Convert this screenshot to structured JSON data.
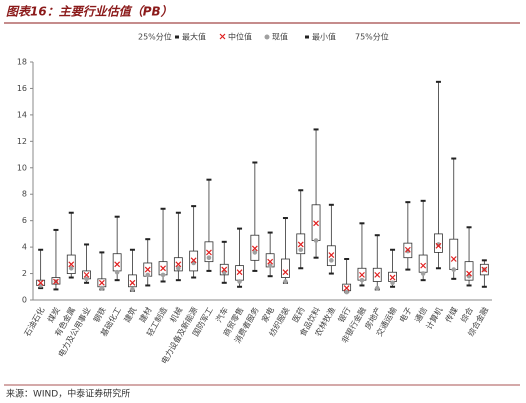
{
  "title": "图表16：主要行业估值（PB）",
  "source": "来源：WIND，中泰证券研究所",
  "chart_data": {
    "type": "box",
    "categories": [
      "石油石化",
      "煤炭",
      "有色金属",
      "电力及公用事业",
      "钢铁",
      "基础化工",
      "建筑",
      "建材",
      "轻工制造",
      "机械",
      "电力设备及新能源",
      "国防军工",
      "汽车",
      "商贸零售",
      "消费者服务",
      "家电",
      "纺织服装",
      "医药",
      "食品饮料",
      "农林牧渔",
      "银行",
      "非银行金融",
      "房地产",
      "交通运输",
      "电子",
      "通信",
      "计算机",
      "传媒",
      "综合",
      "综合金融"
    ],
    "series": [
      {
        "name": "25%分位",
        "color": "#ffffff",
        "values": [
          1.1,
          1.2,
          2.0,
          1.6,
          1.0,
          2.2,
          1.0,
          1.8,
          1.9,
          2.2,
          2.2,
          2.9,
          1.9,
          1.5,
          3.0,
          2.5,
          1.7,
          3.5,
          4.5,
          2.6,
          0.7,
          1.5,
          1.4,
          1.4,
          3.2,
          2.1,
          3.6,
          2.3,
          1.5,
          1.9
        ]
      },
      {
        "name": "最大值",
        "color": "#222222",
        "values": [
          3.8,
          5.3,
          6.6,
          4.2,
          3.6,
          6.3,
          3.8,
          4.6,
          6.9,
          6.6,
          7.1,
          9.1,
          4.4,
          5.4,
          10.4,
          5.1,
          6.2,
          8.3,
          12.9,
          7.2,
          3.1,
          5.8,
          4.9,
          3.8,
          7.4,
          7.5,
          16.5,
          10.7,
          5.5,
          3.0
        ]
      },
      {
        "name": "中位值",
        "color": "#e02020",
        "values": [
          1.3,
          1.4,
          2.7,
          1.9,
          1.3,
          2.7,
          1.3,
          2.3,
          2.4,
          2.7,
          3.0,
          3.6,
          2.3,
          2.1,
          3.9,
          2.9,
          2.1,
          4.2,
          5.8,
          3.4,
          0.9,
          1.9,
          1.9,
          1.7,
          3.8,
          2.6,
          4.1,
          3.1,
          2.0,
          2.3
        ]
      },
      {
        "name": "现值",
        "color": "#a0a0a0",
        "values": [
          1.1,
          1.4,
          2.4,
          1.6,
          0.9,
          2.1,
          0.8,
          1.9,
          1.9,
          2.4,
          2.8,
          3.2,
          2.1,
          1.4,
          3.6,
          2.6,
          1.4,
          3.8,
          4.5,
          3.0,
          0.6,
          1.5,
          0.9,
          1.3,
          3.7,
          2.0,
          4.2,
          2.3,
          1.8,
          2.3
        ]
      },
      {
        "name": "最小值",
        "color": "#222222",
        "values": [
          0.9,
          0.8,
          1.7,
          1.3,
          0.8,
          1.5,
          0.7,
          1.1,
          1.4,
          1.5,
          1.7,
          2.2,
          1.3,
          1.0,
          2.2,
          1.8,
          1.3,
          2.4,
          3.2,
          2.0,
          0.6,
          1.1,
          0.8,
          1.0,
          2.3,
          1.5,
          2.4,
          1.6,
          1.1,
          1.0
        ]
      },
      {
        "name": "75%分位",
        "color": "#ffffff",
        "values": [
          1.5,
          1.7,
          3.4,
          2.2,
          1.6,
          3.5,
          1.9,
          2.8,
          2.9,
          3.2,
          3.7,
          4.4,
          2.7,
          2.6,
          4.9,
          3.5,
          3.1,
          5.0,
          7.2,
          4.1,
          1.2,
          2.4,
          2.4,
          2.1,
          4.3,
          3.4,
          5.0,
          4.6,
          2.9,
          2.7
        ]
      }
    ],
    "ylim": [
      0,
      18
    ],
    "yticks": [
      0,
      2,
      4,
      6,
      8,
      10,
      12,
      14,
      16,
      18
    ]
  }
}
